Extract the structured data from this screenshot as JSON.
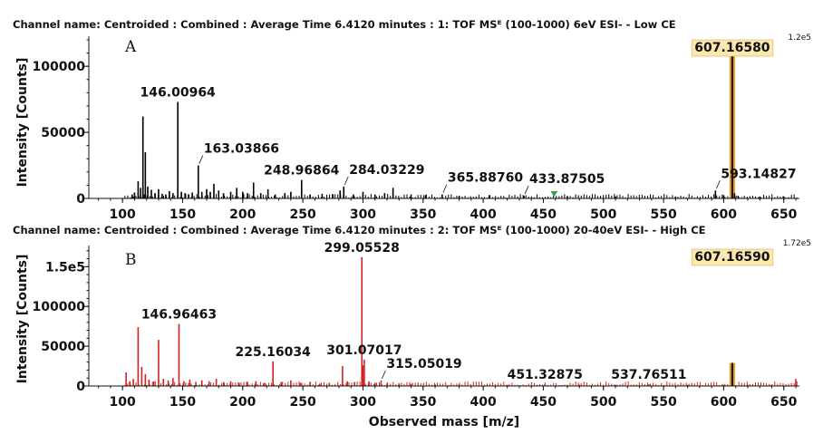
{
  "chart_data": [
    {
      "type": "bar",
      "panel_label": "A",
      "title": "Channel name: Centroided : Combined : Average Time 6.4120 minutes : 1: TOF MSᴱ (100-1000) 6eV ESI- - Low CE",
      "ylabel": "Intensity [Counts]",
      "xlabel": "",
      "xlim": [
        72,
        663
      ],
      "ylim": [
        0,
        120000
      ],
      "scale_label": "1.2e5",
      "yticks": [
        {
          "value": 0,
          "label": "0"
        },
        {
          "value": 50000,
          "label": "50000"
        },
        {
          "value": 100000,
          "label": "100000"
        }
      ],
      "xticks": [
        100,
        150,
        200,
        250,
        300,
        350,
        400,
        450,
        500,
        550,
        600,
        650
      ],
      "color": "#000000",
      "highlight_color": "#e8951a",
      "marker_color": "#2ea04a",
      "marker_x": 459,
      "peaks": [
        {
          "mz": 108,
          "intensity": 3000
        },
        {
          "mz": 110,
          "intensity": 4500
        },
        {
          "mz": 113,
          "intensity": 13000
        },
        {
          "mz": 115,
          "intensity": 8000
        },
        {
          "mz": 117,
          "intensity": 62000
        },
        {
          "mz": 119,
          "intensity": 35000
        },
        {
          "mz": 121,
          "intensity": 9000
        },
        {
          "mz": 124,
          "intensity": 6500
        },
        {
          "mz": 127,
          "intensity": 4000
        },
        {
          "mz": 130,
          "intensity": 7000
        },
        {
          "mz": 133,
          "intensity": 3500
        },
        {
          "mz": 136,
          "intensity": 3000
        },
        {
          "mz": 139,
          "intensity": 5500
        },
        {
          "mz": 142,
          "intensity": 4000
        },
        {
          "mz": 146.00964,
          "intensity": 73000
        },
        {
          "mz": 149,
          "intensity": 5000
        },
        {
          "mz": 152,
          "intensity": 4000
        },
        {
          "mz": 155,
          "intensity": 3000
        },
        {
          "mz": 158,
          "intensity": 4500
        },
        {
          "mz": 163.03866,
          "intensity": 25000
        },
        {
          "mz": 166,
          "intensity": 5000
        },
        {
          "mz": 170,
          "intensity": 7000
        },
        {
          "mz": 173,
          "intensity": 5000
        },
        {
          "mz": 176,
          "intensity": 11000
        },
        {
          "mz": 180,
          "intensity": 6000
        },
        {
          "mz": 184,
          "intensity": 4000
        },
        {
          "mz": 190,
          "intensity": 5000
        },
        {
          "mz": 195,
          "intensity": 8000
        },
        {
          "mz": 200,
          "intensity": 5000
        },
        {
          "mz": 204,
          "intensity": 4000
        },
        {
          "mz": 209,
          "intensity": 12000
        },
        {
          "mz": 215,
          "intensity": 4000
        },
        {
          "mz": 221,
          "intensity": 7000
        },
        {
          "mz": 227,
          "intensity": 3000
        },
        {
          "mz": 235,
          "intensity": 4000
        },
        {
          "mz": 240,
          "intensity": 5000
        },
        {
          "mz": 248.96864,
          "intensity": 14000
        },
        {
          "mz": 256,
          "intensity": 3000
        },
        {
          "mz": 266,
          "intensity": 3500
        },
        {
          "mz": 275,
          "intensity": 3000
        },
        {
          "mz": 281,
          "intensity": 6000
        },
        {
          "mz": 284.03229,
          "intensity": 9000
        },
        {
          "mz": 292,
          "intensity": 3000
        },
        {
          "mz": 300,
          "intensity": 5000
        },
        {
          "mz": 310,
          "intensity": 3000
        },
        {
          "mz": 318,
          "intensity": 4000
        },
        {
          "mz": 325,
          "intensity": 8000
        },
        {
          "mz": 340,
          "intensity": 3000
        },
        {
          "mz": 352,
          "intensity": 2500
        },
        {
          "mz": 365.8876,
          "intensity": 3000
        },
        {
          "mz": 380,
          "intensity": 2000
        },
        {
          "mz": 405,
          "intensity": 2500
        },
        {
          "mz": 433.87505,
          "intensity": 2000
        },
        {
          "mz": 470,
          "intensity": 1500
        },
        {
          "mz": 510,
          "intensity": 1500
        },
        {
          "mz": 560,
          "intensity": 1500
        },
        {
          "mz": 593.14827,
          "intensity": 6000
        },
        {
          "mz": 600,
          "intensity": 2500
        },
        {
          "mz": 607.1658,
          "intensity": 111000,
          "highlight": true
        },
        {
          "mz": 609,
          "intensity": 4000
        },
        {
          "mz": 612,
          "intensity": 2000
        },
        {
          "mz": 630,
          "intensity": 1500
        },
        {
          "mz": 650,
          "intensity": 1500
        }
      ],
      "annotations": [
        {
          "text": "146.00964",
          "mz": 146.00964,
          "intensity": 73000,
          "leader": false
        },
        {
          "text": "163.03866",
          "mz": 163.03866,
          "intensity": 25000,
          "leader": true
        },
        {
          "text": "248.96864",
          "mz": 248.96864,
          "intensity": 14000,
          "leader": false
        },
        {
          "text": "284.03229",
          "mz": 284.03229,
          "intensity": 9000,
          "leader": true
        },
        {
          "text": "365.88760",
          "mz": 365.8876,
          "intensity": 3000,
          "leader": true
        },
        {
          "text": "433.87505",
          "mz": 433.87505,
          "intensity": 2000,
          "leader": true
        },
        {
          "text": "593.14827",
          "mz": 593.14827,
          "intensity": 6000,
          "leader": true
        },
        {
          "text": "607.16580",
          "mz": 607.1658,
          "intensity": 111000,
          "leader": false,
          "boxed": true
        }
      ]
    },
    {
      "type": "bar",
      "panel_label": "B",
      "title": "Channel name: Centroided : Combined : Average Time 6.4120 minutes : 2: TOF MSᴱ (100-1000) 20-40eV ESI- - High CE",
      "ylabel": "Intensity [Counts]",
      "xlabel": "Observed mass [m/z]",
      "xlim": [
        72,
        663
      ],
      "ylim": [
        0,
        172000
      ],
      "scale_label": "1.72e5",
      "yticks": [
        {
          "value": 0,
          "label": "0"
        },
        {
          "value": 50000,
          "label": "50000"
        },
        {
          "value": 100000,
          "label": "100000"
        },
        {
          "value": 150000,
          "label": "1.5e5"
        }
      ],
      "xticks": [
        100,
        150,
        200,
        250,
        300,
        350,
        400,
        450,
        500,
        550,
        600,
        650
      ],
      "color": "#d42020",
      "highlight_color": "#e8951a",
      "peaks": [
        {
          "mz": 103,
          "intensity": 17000
        },
        {
          "mz": 106,
          "intensity": 6000
        },
        {
          "mz": 109,
          "intensity": 9000
        },
        {
          "mz": 113,
          "intensity": 74000
        },
        {
          "mz": 116,
          "intensity": 24000
        },
        {
          "mz": 119,
          "intensity": 15000
        },
        {
          "mz": 122,
          "intensity": 8000
        },
        {
          "mz": 126,
          "intensity": 6000
        },
        {
          "mz": 130,
          "intensity": 58000
        },
        {
          "mz": 134,
          "intensity": 9000
        },
        {
          "mz": 138,
          "intensity": 7000
        },
        {
          "mz": 142,
          "intensity": 10000
        },
        {
          "mz": 146.96463,
          "intensity": 78000
        },
        {
          "mz": 151,
          "intensity": 6000
        },
        {
          "mz": 156,
          "intensity": 8000
        },
        {
          "mz": 161,
          "intensity": 5000
        },
        {
          "mz": 166,
          "intensity": 7000
        },
        {
          "mz": 172,
          "intensity": 6000
        },
        {
          "mz": 178,
          "intensity": 9000
        },
        {
          "mz": 184,
          "intensity": 5000
        },
        {
          "mz": 190,
          "intensity": 6000
        },
        {
          "mz": 197,
          "intensity": 4000
        },
        {
          "mz": 204,
          "intensity": 5000
        },
        {
          "mz": 211,
          "intensity": 6000
        },
        {
          "mz": 218,
          "intensity": 4000
        },
        {
          "mz": 225.16034,
          "intensity": 31000
        },
        {
          "mz": 232,
          "intensity": 5000
        },
        {
          "mz": 240,
          "intensity": 7000
        },
        {
          "mz": 248,
          "intensity": 4000
        },
        {
          "mz": 256,
          "intensity": 5000
        },
        {
          "mz": 264,
          "intensity": 3000
        },
        {
          "mz": 272,
          "intensity": 4000
        },
        {
          "mz": 283,
          "intensity": 25000
        },
        {
          "mz": 287,
          "intensity": 6000
        },
        {
          "mz": 293,
          "intensity": 5000
        },
        {
          "mz": 299.05528,
          "intensity": 162000
        },
        {
          "mz": 300,
          "intensity": 26000
        },
        {
          "mz": 301.07017,
          "intensity": 33000
        },
        {
          "mz": 305,
          "intensity": 6000
        },
        {
          "mz": 310,
          "intensity": 4000
        },
        {
          "mz": 315.05019,
          "intensity": 7000
        },
        {
          "mz": 320,
          "intensity": 3000
        },
        {
          "mz": 330,
          "intensity": 3000
        },
        {
          "mz": 340,
          "intensity": 2500
        },
        {
          "mz": 360,
          "intensity": 2000
        },
        {
          "mz": 380,
          "intensity": 2000
        },
        {
          "mz": 420,
          "intensity": 1500
        },
        {
          "mz": 451.32875,
          "intensity": 2500
        },
        {
          "mz": 480,
          "intensity": 1500
        },
        {
          "mz": 510,
          "intensity": 1500
        },
        {
          "mz": 537.76511,
          "intensity": 2000
        },
        {
          "mz": 570,
          "intensity": 1500
        },
        {
          "mz": 600,
          "intensity": 1500
        },
        {
          "mz": 607.1659,
          "intensity": 29000,
          "highlight": true
        },
        {
          "mz": 620,
          "intensity": 1500
        },
        {
          "mz": 640,
          "intensity": 2000
        },
        {
          "mz": 660,
          "intensity": 9000
        }
      ],
      "annotations": [
        {
          "text": "146.96463",
          "mz": 146.96463,
          "intensity": 78000,
          "leader": false
        },
        {
          "text": "225.16034",
          "mz": 225.16034,
          "intensity": 31000,
          "leader": false
        },
        {
          "text": "299.05528",
          "mz": 299.05528,
          "intensity": 162000,
          "leader": false
        },
        {
          "text": "301.07017",
          "mz": 301.07017,
          "intensity": 33000,
          "leader": false
        },
        {
          "text": "315.05019",
          "mz": 315.05019,
          "intensity": 7000,
          "leader": true
        },
        {
          "text": "451.32875",
          "mz": 451.32875,
          "intensity": 2500,
          "leader": false
        },
        {
          "text": "537.76511",
          "mz": 537.76511,
          "intensity": 2000,
          "leader": false
        },
        {
          "text": "607.16590",
          "mz": 607.1659,
          "intensity": 29000,
          "leader": false,
          "boxed": true
        }
      ]
    }
  ]
}
